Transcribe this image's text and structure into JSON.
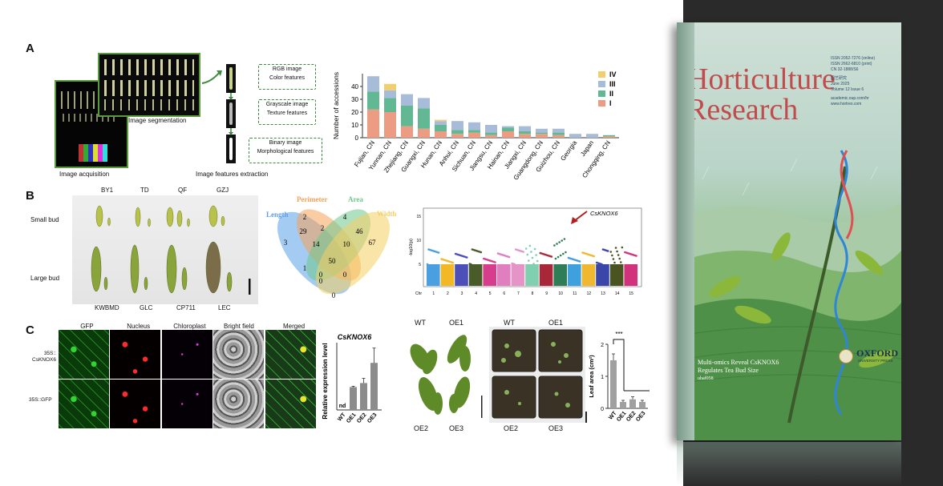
{
  "panels": {
    "a": "A",
    "b": "B",
    "c": "C"
  },
  "panelA": {
    "image_acquisition": "Image acquisition",
    "image_segmentation": "Image segmentation",
    "features_extraction": "Image features extraction",
    "box1": {
      "line1": "RGB image",
      "line2": "Color features"
    },
    "box2": {
      "line1": "Grayscale image",
      "line2": "Texture features"
    },
    "box3": {
      "line1": "Binary image",
      "line2": "Morphological features"
    },
    "colors": {
      "I": "#ec9c82",
      "II": "#62b892",
      "III": "#a6bcd9",
      "IV": "#f1cf6e"
    }
  },
  "chart_data": {
    "type": "bar",
    "ylabel": "Number of accessions",
    "ylim": [
      0,
      50
    ],
    "yticks": [
      0,
      10,
      20,
      30,
      40
    ],
    "categories": [
      "Fujian, CN",
      "Yunnan, CN",
      "Zhejiang, CN",
      "Guangxi, CN",
      "Hunan, CN",
      "Anhui, CN",
      "Sichuan, CN",
      "Jiangsu, CN",
      "Hainan, CN",
      "Jiangxi, CN",
      "Guangdong, CN",
      "Guizhou, CN",
      "Georgia",
      "Japan",
      "Chongqing, CN"
    ],
    "series": [
      {
        "name": "I",
        "values": [
          22,
          20,
          9,
          7,
          5,
          3,
          4,
          2,
          5,
          3,
          3,
          2,
          0,
          0,
          1
        ]
      },
      {
        "name": "II",
        "values": [
          14,
          11,
          16,
          16,
          5,
          3,
          2,
          2,
          3,
          2,
          1,
          2,
          0,
          0,
          1
        ]
      },
      {
        "name": "III",
        "values": [
          12,
          6,
          9,
          8,
          3,
          7,
          6,
          6,
          1,
          4,
          3,
          3,
          3,
          3,
          0
        ]
      },
      {
        "name": "IV",
        "values": [
          0,
          5,
          0,
          0,
          1,
          0,
          0,
          0,
          0,
          0,
          0,
          0,
          0,
          0,
          0
        ]
      }
    ],
    "legend": [
      "IV",
      "III",
      "II",
      "I"
    ],
    "legend_position": "top-right"
  },
  "panelB": {
    "top_cultivars": [
      "BY1",
      "TD",
      "QF",
      "GZJ"
    ],
    "bottom_cultivars": [
      "KWBMD",
      "GLC",
      "CP711",
      "LEC"
    ],
    "small_bud": "Small bud",
    "large_bud": "Large bud",
    "venn": {
      "sets": [
        "Length",
        "Perimeter",
        "Area",
        "Width"
      ],
      "colors": [
        "#5aa0e6",
        "#f4a259",
        "#6dc98c",
        "#f5cf63"
      ],
      "numbers": [
        "3",
        "2",
        "4",
        "67",
        "29",
        "2",
        "46",
        "14",
        "10",
        "1",
        "50",
        "0",
        "0",
        "0",
        "0"
      ]
    },
    "manhattan": {
      "ylabel": "-log10(p)",
      "yticks": [
        "5",
        "10",
        "15"
      ],
      "chr_label": "Chr",
      "chromosomes": [
        "1",
        "2",
        "3",
        "4",
        "5",
        "6",
        "7",
        "8",
        "9",
        "10",
        "11",
        "12",
        "13",
        "14",
        "15"
      ],
      "gene": "CsKNOX6",
      "colors": [
        "#4a9fe0",
        "#f2b825",
        "#4d4fb8",
        "#4a5b2a",
        "#d63d8c",
        "#e07fc0",
        "#e694c8",
        "#7fcfb0",
        "#a8283a",
        "#2f7d56",
        "#3ea0dd",
        "#f0b830",
        "#3a47a8",
        "#4a5420",
        "#d2327c"
      ]
    }
  },
  "panelC": {
    "micro_headers": [
      "GFP",
      "Nucleus",
      "Chloroplast",
      "Bright field",
      "Merged"
    ],
    "row1": "35S::\nCsKNOX6",
    "row1a": "35S::",
    "row1b": "CsKNOX6",
    "row2": "35S::GFP",
    "expr": {
      "title": "CsKNOX6",
      "ylabel": "Relative expression level",
      "nd": "nd",
      "categories": [
        "WT",
        "OE1",
        "OE2",
        "OE3"
      ],
      "values": [
        0,
        17,
        20,
        35
      ],
      "errors": [
        0,
        0.6,
        3.5,
        11
      ],
      "ylim": [
        0,
        50
      ]
    },
    "plants1": {
      "labels": [
        "WT",
        "OE1",
        "OE2",
        "OE3"
      ]
    },
    "plants2": {
      "labels": [
        "WT",
        "OE1",
        "OE2",
        "OE3"
      ]
    },
    "leaf": {
      "ylabel": "Leaf area (cm²)",
      "sig": "***",
      "categories": [
        "WT",
        "OE1",
        "OE2",
        "OE3"
      ],
      "values": [
        1.5,
        0.2,
        0.28,
        0.2
      ],
      "errors": [
        0.2,
        0.05,
        0.08,
        0.05
      ],
      "ylim": [
        0,
        2
      ],
      "yticks": [
        "0",
        "1",
        "2"
      ]
    }
  },
  "cover": {
    "title1": "Horticulture",
    "title2": "Research",
    "issn": [
      "ISSN 2052-7276 (online)",
      "ISSN 2662-6810 (print)",
      "CN 32-1888/S6"
    ],
    "issue": [
      "园艺研究",
      "June 2025",
      "Volume 12 Issue 6"
    ],
    "urls": [
      "academic.oup.com/hr",
      "www.hortres.com"
    ],
    "headline1": "Multi-omics Reveal CsKNOX6",
    "headline2": "Regulates Tea Bud Size",
    "headline3": "uhaf058",
    "publisher": "OXFORD",
    "publisher_sub": "UNIVERSITY PRESS"
  }
}
